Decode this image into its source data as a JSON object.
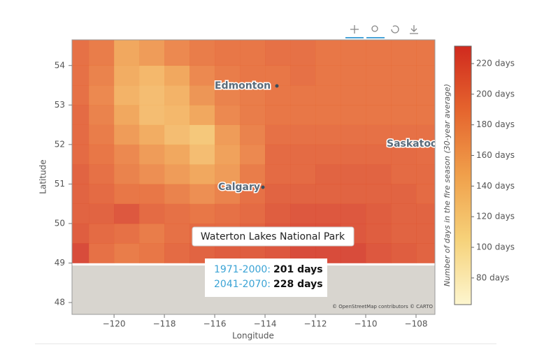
{
  "chart_data": {
    "type": "heatmap",
    "xlabel": "Longitude",
    "ylabel": "Latitude",
    "xlim": [
      -121.67,
      -107.25
    ],
    "ylim": [
      47.7,
      54.65
    ],
    "xticks": [
      {
        "value": -120,
        "label": "−120"
      },
      {
        "value": -118,
        "label": "−118"
      },
      {
        "value": -116,
        "label": "−116"
      },
      {
        "value": -114,
        "label": "−114"
      },
      {
        "value": -112,
        "label": "−112"
      },
      {
        "value": -110,
        "label": "−110"
      },
      {
        "value": -108,
        "label": "−108"
      }
    ],
    "yticks": [
      48,
      49,
      50,
      51,
      52,
      53,
      54
    ],
    "lon_edges": [
      -121.67,
      -121,
      -120,
      -119,
      -118,
      -117,
      -116,
      -115,
      -114,
      -113,
      -112,
      -111,
      -110,
      -109,
      -108,
      -107.25
    ],
    "lat_edges": [
      49,
      49.5,
      50,
      50.5,
      51,
      51.5,
      52,
      52.5,
      53,
      53.5,
      54,
      54.65
    ],
    "values": [
      [
        225,
        195,
        185,
        190,
        200,
        205,
        210,
        210,
        215,
        225,
        225,
        225,
        215,
        210,
        205
      ],
      [
        210,
        200,
        195,
        185,
        195,
        200,
        200,
        205,
        215,
        220,
        220,
        215,
        210,
        205,
        205
      ],
      [
        205,
        205,
        215,
        200,
        195,
        190,
        195,
        200,
        210,
        215,
        215,
        215,
        210,
        205,
        205
      ],
      [
        205,
        200,
        190,
        190,
        180,
        170,
        180,
        195,
        205,
        205,
        205,
        205,
        205,
        205,
        200
      ],
      [
        205,
        195,
        180,
        170,
        160,
        150,
        160,
        185,
        200,
        200,
        205,
        205,
        205,
        200,
        200
      ],
      [
        200,
        190,
        175,
        160,
        150,
        130,
        155,
        175,
        200,
        200,
        200,
        200,
        200,
        200,
        198
      ],
      [
        200,
        185,
        160,
        145,
        130,
        120,
        160,
        180,
        195,
        195,
        195,
        195,
        195,
        195,
        195
      ],
      [
        200,
        180,
        150,
        130,
        135,
        150,
        175,
        185,
        190,
        190,
        190,
        190,
        190,
        190,
        190
      ],
      [
        195,
        175,
        140,
        130,
        140,
        165,
        180,
        185,
        190,
        190,
        190,
        190,
        190,
        190,
        190
      ],
      [
        195,
        180,
        145,
        135,
        150,
        175,
        185,
        190,
        190,
        195,
        190,
        190,
        190,
        190,
        190
      ],
      [
        195,
        185,
        150,
        160,
        175,
        185,
        190,
        190,
        195,
        195,
        190,
        190,
        190,
        190,
        190
      ]
    ],
    "colorbar": {
      "label": "Number of days in the fire season (30-year average)",
      "clim": [
        62.6,
        231.4
      ],
      "colors": [
        "#fdf6cf",
        "#f6d27a",
        "#f0a04b",
        "#e5652e",
        "#d02a1e"
      ],
      "ticks": [
        {
          "value": 80,
          "label": "80 days"
        },
        {
          "value": 100,
          "label": "100 days"
        },
        {
          "value": 120,
          "label": "120 days"
        },
        {
          "value": 140,
          "label": "140 days"
        },
        {
          "value": 160,
          "label": "160 days"
        },
        {
          "value": 180,
          "label": "180 days"
        },
        {
          "value": 200,
          "label": "200 days"
        },
        {
          "value": 220,
          "label": "220 days"
        }
      ]
    },
    "places": [
      "Edmonton",
      "Calgary",
      "Saskatoo"
    ],
    "tooltip": "Waterton Lakes National Park",
    "info": [
      {
        "period": "1971-2000:",
        "value": "201 days"
      },
      {
        "period": "2041-2070:",
        "value": "228 days"
      }
    ],
    "attribution": "© OpenStreetMap contributors © CARTO"
  }
}
